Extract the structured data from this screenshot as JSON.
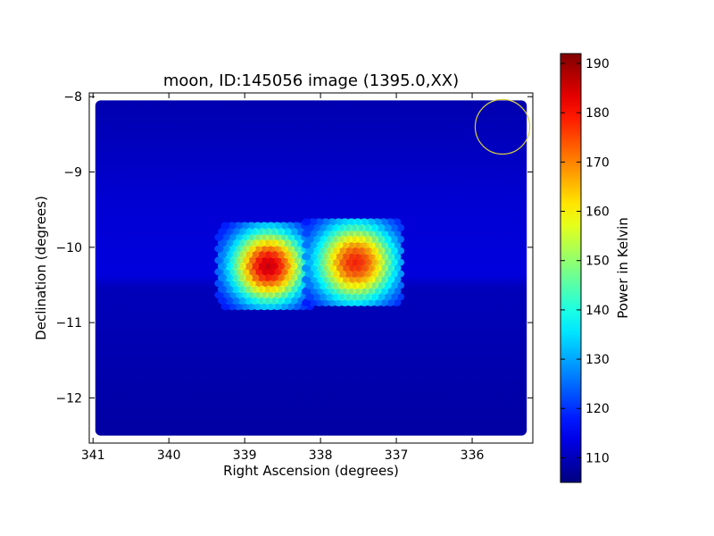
{
  "chart_data": {
    "type": "heatmap",
    "title": "moon, ID:145056 image (1395.0,XX)",
    "xlabel": "Right Ascension (degrees)",
    "ylabel": "Declination (degrees)",
    "xlim": [
      341.05,
      335.2
    ],
    "ylim": [
      -12.6,
      -7.95
    ],
    "x_ticks": [
      {
        "value": 341,
        "label": "341"
      },
      {
        "value": 340,
        "label": "340"
      },
      {
        "value": 339,
        "label": "339"
      },
      {
        "value": 338,
        "label": "338"
      },
      {
        "value": 337,
        "label": "337"
      },
      {
        "value": 336,
        "label": "336"
      }
    ],
    "y_ticks": [
      {
        "value": -8,
        "label": "−8"
      },
      {
        "value": -9,
        "label": "−9"
      },
      {
        "value": -10,
        "label": "−10"
      },
      {
        "value": -11,
        "label": "−11"
      },
      {
        "value": -12,
        "label": "−12"
      }
    ],
    "colorbar": {
      "label": "Power in Kelvin",
      "min": 105,
      "max": 192,
      "colormap": "jet",
      "ticks": [
        {
          "value": 110,
          "label": "110"
        },
        {
          "value": 120,
          "label": "120"
        },
        {
          "value": 130,
          "label": "130"
        },
        {
          "value": 140,
          "label": "140"
        },
        {
          "value": 150,
          "label": "150"
        },
        {
          "value": 160,
          "label": "160"
        },
        {
          "value": 170,
          "label": "170"
        },
        {
          "value": 180,
          "label": "180"
        },
        {
          "value": 190,
          "label": "190"
        }
      ]
    },
    "background_level": 112,
    "sources": [
      {
        "ra": 338.7,
        "dec": -10.25,
        "peak": 185,
        "sigma_ra": 0.35,
        "sigma_dec": 0.35
      },
      {
        "ra": 337.55,
        "dec": -10.2,
        "peak": 178,
        "sigma_ra": 0.38,
        "sigma_dec": 0.38
      }
    ],
    "beam_circle": {
      "ra": 335.6,
      "dec": -8.4,
      "radius_deg": 0.36,
      "color": "#d8d040"
    },
    "grid": false,
    "legend": "none"
  }
}
